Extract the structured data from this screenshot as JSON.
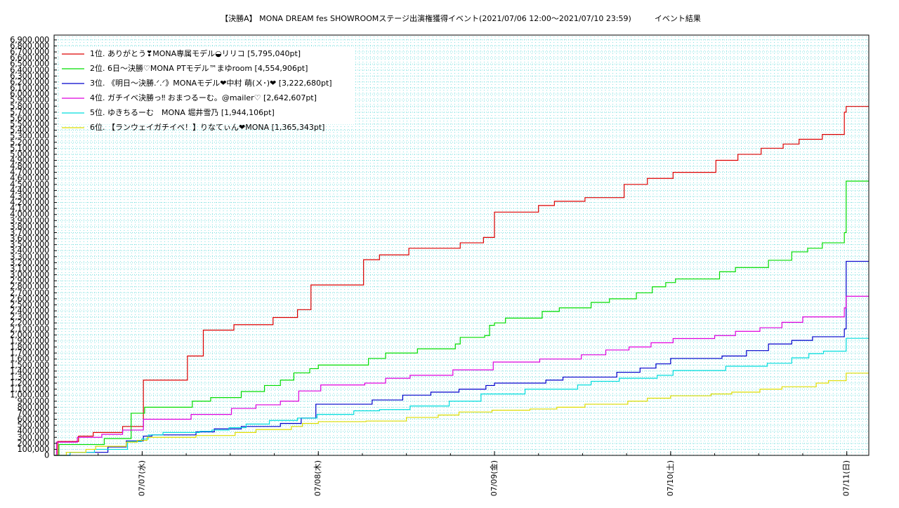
{
  "chart_data": {
    "type": "line",
    "step": "post",
    "title": "【決勝A】 MONA DREAM fes SHOWROOMステージ出演権獲得イベント(2021/07/06 12:00〜2021/07/10 23:59)　　　イベント結果",
    "xlim": [
      "07/06 12:00",
      "07/11 03:00"
    ],
    "xticks": [
      {
        "value": "07/07 00:00",
        "label": "07/07(水)"
      },
      {
        "value": "07/08 00:00",
        "label": "07/08(木)"
      },
      {
        "value": "07/09 00:00",
        "label": "07/09(金)"
      },
      {
        "value": "07/10 00:00",
        "label": "07/10(土)"
      },
      {
        "value": "07/11 00:00",
        "label": "07/11(日)"
      }
    ],
    "ylim": [
      0,
      6980000
    ],
    "yticks": [
      0,
      {
        "value": 100000,
        "label": "100,000"
      },
      {
        "value": 200000,
        "label": "200,000"
      },
      {
        "value": 300000,
        "label": "300,000"
      },
      {
        "value": 400000,
        "label": "400,000"
      },
      {
        "value": 500000,
        "label": "500,000"
      },
      {
        "value": 600000,
        "label": "600,000"
      },
      {
        "value": 700000,
        "label": "700,000"
      },
      {
        "value": 800000,
        "label": "800,000"
      },
      {
        "value": 900000,
        "label": "900,000"
      },
      {
        "value": 1000000,
        "label": "1,000,000"
      },
      {
        "value": 1100000,
        "label": "1,100,000"
      },
      {
        "value": 1200000,
        "label": "1,200,000"
      },
      {
        "value": 1300000,
        "label": "1,300,000"
      },
      {
        "value": 1400000,
        "label": "1,400,000"
      },
      {
        "value": 1500000,
        "label": "1,500,000"
      },
      {
        "value": 1600000,
        "label": "1,600,000"
      },
      {
        "value": 1700000,
        "label": "1,700,000"
      },
      {
        "value": 1800000,
        "label": "1,800,000"
      },
      {
        "value": 1900000,
        "label": "1,900,000"
      },
      {
        "value": 2000000,
        "label": "2,000,000"
      },
      {
        "value": 2100000,
        "label": "2,100,000"
      },
      {
        "value": 2200000,
        "label": "2,200,000"
      },
      {
        "value": 2300000,
        "label": "2,300,000"
      },
      {
        "value": 2400000,
        "label": "2,400,000"
      },
      {
        "value": 2500000,
        "label": "2,500,000"
      },
      {
        "value": 2600000,
        "label": "2,600,000"
      },
      {
        "value": 2700000,
        "label": "2,700,000"
      },
      {
        "value": 2800000,
        "label": "2,800,000"
      },
      {
        "value": 2900000,
        "label": "2,900,000"
      },
      {
        "value": 3000000,
        "label": "3,000,000"
      },
      {
        "value": 3100000,
        "label": "3,100,000"
      },
      {
        "value": 3200000,
        "label": "3,200,000"
      },
      {
        "value": 3300000,
        "label": "3,300,000"
      },
      {
        "value": 3400000,
        "label": "3,400,000"
      },
      {
        "value": 3500000,
        "label": "3,500,000"
      },
      {
        "value": 3600000,
        "label": "3,600,000"
      },
      {
        "value": 3700000,
        "label": "3,700,000"
      },
      {
        "value": 3800000,
        "label": "3,800,000"
      },
      {
        "value": 3900000,
        "label": "3,900,000"
      },
      {
        "value": 4000000,
        "label": "4,000,000"
      },
      {
        "value": 4100000,
        "label": "4,100,000"
      },
      {
        "value": 4200000,
        "label": "4,200,000"
      },
      {
        "value": 4300000,
        "label": "4,300,000"
      },
      {
        "value": 4400000,
        "label": "4,400,000"
      },
      {
        "value": 4500000,
        "label": "4,500,000"
      },
      {
        "value": 4600000,
        "label": "4,600,000"
      },
      {
        "value": 4700000,
        "label": "4,700,000"
      },
      {
        "value": 4800000,
        "label": "4,800,000"
      },
      {
        "value": 4900000,
        "label": "4,900,000"
      },
      {
        "value": 5000000,
        "label": "5,000,000"
      },
      {
        "value": 5100000,
        "label": "5,100,000"
      },
      {
        "value": 5200000,
        "label": "5,200,000"
      },
      {
        "value": 5300000,
        "label": "5,300,000"
      },
      {
        "value": 5400000,
        "label": "5,400,000"
      },
      {
        "value": 5500000,
        "label": "5,500,000"
      },
      {
        "value": 5600000,
        "label": "5,600,000"
      },
      {
        "value": 5700000,
        "label": "5,700,000"
      },
      {
        "value": 5800000,
        "label": "5,800,000"
      },
      {
        "value": 5900000,
        "label": "5,900,000"
      },
      {
        "value": 6000000,
        "label": "6,000,000"
      },
      {
        "value": 6100000,
        "label": "6,100,000"
      },
      {
        "value": 6200000,
        "label": "6,200,000"
      },
      {
        "value": 6300000,
        "label": "6,300,000"
      },
      {
        "value": 6400000,
        "label": "6,400,000"
      },
      {
        "value": 6500000,
        "label": "6,500,000"
      },
      {
        "value": 6600000,
        "label": "6,600,000"
      },
      {
        "value": 6700000,
        "label": "6,700,000"
      },
      {
        "value": 6800000,
        "label": "6,800,000"
      },
      {
        "value": 6900000,
        "label": "6,900,000"
      }
    ],
    "grid": true,
    "legend": "upper left",
    "series": [
      {
        "name": "1位. ありがとう❣MONA専属モデル◒リリコ [5,795,040pt]",
        "color": "#dd0000",
        "x": [
          "07/06 12:00",
          "07/06 12:30",
          "07/06 15:20",
          "07/06 17:20",
          "07/06 21:20",
          "07/07 00:10",
          "07/07 06:10",
          "07/07 08:20",
          "07/07 12:30",
          "07/07 17:50",
          "07/07 21:10",
          "07/07 23:00",
          "07/08 06:10",
          "07/08 08:20",
          "07/08 12:20",
          "07/08 19:20",
          "07/08 22:30",
          "07/09 00:00",
          "07/09 06:00",
          "07/09 08:10",
          "07/09 12:20",
          "07/09 17:40",
          "07/09 20:50",
          "07/10 00:20",
          "07/10 06:10",
          "07/10 09:10",
          "07/10 12:20",
          "07/10 15:20",
          "07/10 17:30",
          "07/10 20:40",
          "07/10 23:40",
          "07/10 23:55",
          "07/11 03:00"
        ],
        "values": [
          0,
          230000,
          320000,
          380000,
          480000,
          1250000,
          1650000,
          2080000,
          2170000,
          2290000,
          2420000,
          2830000,
          3250000,
          3330000,
          3440000,
          3530000,
          3620000,
          4040000,
          4150000,
          4220000,
          4280000,
          4500000,
          4600000,
          4700000,
          4900000,
          5000000,
          5100000,
          5170000,
          5250000,
          5330000,
          5700000,
          5795040,
          5795040
        ]
      },
      {
        "name": "2位. 6日〜決勝♡MONA PTモデル™まゆroom [4,554,906pt]",
        "color": "#00dd00",
        "x": [
          "07/06 12:00",
          "07/06 12:40",
          "07/06 18:50",
          "07/06 22:30",
          "07/07 00:20",
          "07/07 06:50",
          "07/07 09:20",
          "07/07 13:30",
          "07/07 16:40",
          "07/07 18:50",
          "07/07 20:40",
          "07/07 22:50",
          "07/08 00:00",
          "07/08 06:50",
          "07/08 09:10",
          "07/08 13:30",
          "07/08 18:40",
          "07/08 19:20",
          "07/08 22:40",
          "07/08 23:20",
          "07/09 00:00",
          "07/09 01:30",
          "07/09 06:30",
          "07/09 08:50",
          "07/09 13:10",
          "07/09 15:40",
          "07/09 19:20",
          "07/09 21:30",
          "07/09 23:20",
          "07/10 00:40",
          "07/10 06:40",
          "07/10 08:50",
          "07/10 13:20",
          "07/10 16:30",
          "07/10 18:40",
          "07/10 20:40",
          "07/10 23:40",
          "07/10 23:55",
          "07/11 03:00"
        ],
        "values": [
          0,
          180000,
          280000,
          700000,
          800000,
          900000,
          960000,
          1060000,
          1160000,
          1250000,
          1370000,
          1440000,
          1500000,
          1610000,
          1700000,
          1770000,
          1850000,
          1960000,
          1990000,
          2160000,
          2200000,
          2280000,
          2390000,
          2450000,
          2540000,
          2600000,
          2700000,
          2800000,
          2870000,
          2930000,
          3050000,
          3120000,
          3240000,
          3380000,
          3440000,
          3530000,
          3700000,
          4554906,
          4554906
        ]
      },
      {
        "name": "3位. 《明日〜決勝.ᐟ.ᐟ》MONAモデル❤中村 萌(ㄨ･)❤ [3,222,680pt]",
        "color": "#0000cc",
        "x": [
          "07/06 12:00",
          "07/06 14:10",
          "07/06 19:20",
          "07/06 21:50",
          "07/07 00:10",
          "07/07 01:20",
          "07/07 07:20",
          "07/07 09:50",
          "07/07 13:30",
          "07/07 18:50",
          "07/07 21:40",
          "07/07 23:40",
          "07/08 07:20",
          "07/08 11:30",
          "07/08 15:20",
          "07/08 19:10",
          "07/08 22:50",
          "07/09 00:00",
          "07/09 07:00",
          "07/09 09:20",
          "07/09 16:40",
          "07/09 19:50",
          "07/09 22:00",
          "07/10 00:00",
          "07/10 07:00",
          "07/10 10:20",
          "07/10 13:20",
          "07/10 16:30",
          "07/10 19:20",
          "07/10 23:40",
          "07/10 23:55",
          "07/11 03:00"
        ],
        "values": [
          0,
          50000,
          140000,
          240000,
          320000,
          340000,
          390000,
          440000,
          480000,
          530000,
          620000,
          850000,
          920000,
          1000000,
          1050000,
          1100000,
          1160000,
          1200000,
          1250000,
          1300000,
          1380000,
          1450000,
          1520000,
          1610000,
          1650000,
          1740000,
          1850000,
          1910000,
          1970000,
          2100000,
          3222680,
          3222680
        ]
      },
      {
        "name": "4位. ガチイベ決勝っ‼ おまつるーむ。@mailer♡ [2,642,607pt]",
        "color": "#dd00dd",
        "x": [
          "07/06 12:00",
          "07/06 12:20",
          "07/06 15:10",
          "07/06 18:30",
          "07/06 21:20",
          "07/07 00:10",
          "07/07 06:40",
          "07/07 12:10",
          "07/07 15:30",
          "07/07 18:50",
          "07/07 21:20",
          "07/08 00:20",
          "07/08 06:20",
          "07/08 09:10",
          "07/08 12:30",
          "07/08 18:20",
          "07/08 23:50",
          "07/09 06:10",
          "07/09 11:50",
          "07/09 15:10",
          "07/09 18:20",
          "07/09 21:20",
          "07/10 00:20",
          "07/10 06:00",
          "07/10 08:50",
          "07/10 12:10",
          "07/10 15:10",
          "07/10 18:00",
          "07/10 23:40",
          "07/10 23:55",
          "07/11 03:00"
        ],
        "values": [
          0,
          220000,
          300000,
          350000,
          420000,
          600000,
          680000,
          780000,
          840000,
          900000,
          1070000,
          1170000,
          1200000,
          1280000,
          1330000,
          1420000,
          1550000,
          1600000,
          1670000,
          1750000,
          1800000,
          1870000,
          1940000,
          1990000,
          2060000,
          2120000,
          2210000,
          2300000,
          2450000,
          2642607,
          2642607
        ]
      },
      {
        "name": "5位. ゆきちるーむ　MONA 堀井雪乃 [1,944,106pt]",
        "color": "#00dddd",
        "x": [
          "07/06 12:00",
          "07/06 14:10",
          "07/06 17:30",
          "07/06 22:00",
          "07/06 23:55",
          "07/07 00:50",
          "07/07 02:50",
          "07/07 07:50",
          "07/07 09:30",
          "07/07 11:50",
          "07/07 14:10",
          "07/07 17:20",
          "07/07 21:10",
          "07/07 23:50",
          "07/08 04:50",
          "07/08 08:20",
          "07/08 12:30",
          "07/08 17:50",
          "07/08 22:10",
          "07/09 04:10",
          "07/09 11:20",
          "07/09 13:10",
          "07/09 17:00",
          "07/09 22:10",
          "07/10 00:20",
          "07/10 07:30",
          "07/10 13:10",
          "07/10 16:30",
          "07/10 18:50",
          "07/10 20:50",
          "07/10 23:55",
          "07/11 03:00"
        ],
        "values": [
          0,
          50000,
          100000,
          230000,
          270000,
          340000,
          380000,
          400000,
          420000,
          460000,
          520000,
          580000,
          620000,
          680000,
          740000,
          760000,
          820000,
          900000,
          1020000,
          1100000,
          1170000,
          1230000,
          1280000,
          1330000,
          1410000,
          1480000,
          1530000,
          1620000,
          1690000,
          1730000,
          1944106,
          1944106
        ]
      },
      {
        "name": "6位. 【ランウェイガチイベ！】りなてぃん❤MONA [1,365,343pt]",
        "color": "#dddd00",
        "x": [
          "07/06 12:00",
          "07/06 13:40",
          "07/06 16:20",
          "07/06 17:40",
          "07/06 21:50",
          "07/06 23:20",
          "07/07 00:40",
          "07/07 07:20",
          "07/07 12:40",
          "07/07 15:30",
          "07/07 20:20",
          "07/07 21:50",
          "07/08 00:00",
          "07/08 06:30",
          "07/08 12:00",
          "07/08 16:20",
          "07/08 19:10",
          "07/08 23:40",
          "07/09 04:50",
          "07/09 08:30",
          "07/09 12:20",
          "07/09 18:10",
          "07/09 20:50",
          "07/10 00:00",
          "07/10 05:30",
          "07/10 08:20",
          "07/10 12:10",
          "07/10 15:10",
          "07/10 19:50",
          "07/10 21:30",
          "07/10 23:55",
          "07/11 03:00"
        ],
        "values": [
          0,
          50000,
          100000,
          150000,
          220000,
          250000,
          300000,
          330000,
          380000,
          430000,
          480000,
          530000,
          560000,
          570000,
          630000,
          670000,
          720000,
          750000,
          770000,
          800000,
          850000,
          900000,
          950000,
          990000,
          1020000,
          1050000,
          1100000,
          1140000,
          1200000,
          1240000,
          1365343,
          1365343
        ]
      }
    ]
  }
}
